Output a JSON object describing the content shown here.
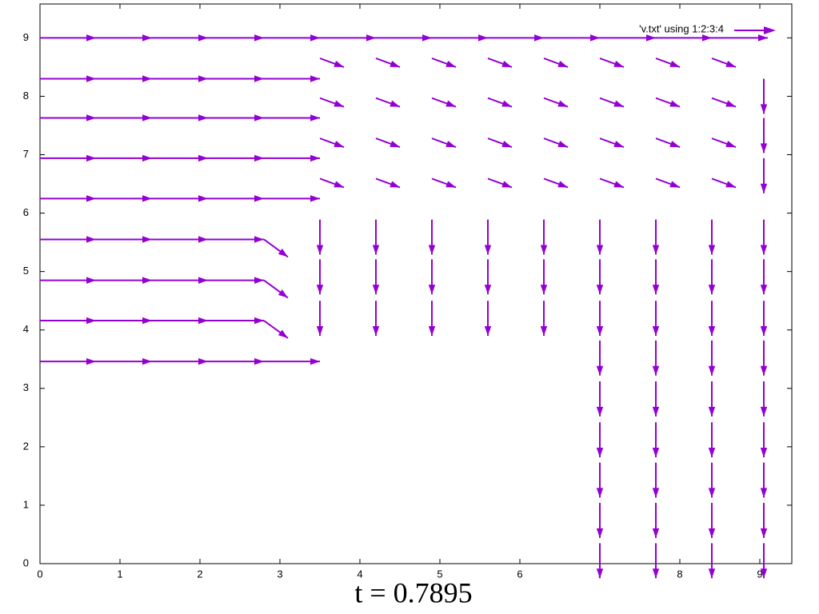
{
  "chart_data": {
    "type": "vector",
    "title": "t = 0.7895",
    "legend_label": "'v.txt' using 1:2:3:4",
    "color": "#9400d3",
    "xlim": [
      0,
      9.4
    ],
    "ylim": [
      0,
      9.58
    ],
    "xticks": [
      0,
      1,
      2,
      3,
      4,
      5,
      6,
      7,
      8,
      9
    ],
    "yticks": [
      0,
      1,
      2,
      3,
      4,
      5,
      6,
      7,
      8,
      9
    ],
    "x": [
      0,
      0.7,
      1.4,
      2.1,
      2.8,
      0,
      0.7,
      1.4,
      2.1,
      2.8,
      0,
      0.7,
      1.4,
      2.1,
      2.8,
      0,
      0.7,
      1.4,
      2.1,
      2.8,
      0,
      0.7,
      1.4,
      2.1,
      2.8,
      0,
      0.7,
      1.4,
      2.1,
      2.8,
      0,
      0.7,
      1.4,
      2.1,
      2.8,
      0,
      0.7,
      1.4,
      2.1,
      2.8,
      0,
      0.7,
      1.4,
      2.1,
      2.8,
      3.5,
      4.2,
      4.9,
      5.6,
      6.3,
      7.0,
      7.7,
      8.4,
      3.5,
      4.2,
      4.9,
      5.6,
      6.3,
      7.0,
      7.7,
      8.4,
      3.5,
      4.2,
      4.9,
      5.6,
      6.3,
      7.0,
      7.7,
      8.4,
      3.5,
      4.2,
      4.9,
      5.6,
      6.3,
      7.0,
      7.7,
      8.4,
      3.5,
      4.2,
      4.9,
      5.6,
      6.3,
      7.0,
      7.7,
      8.4,
      3.5,
      4.2,
      4.9,
      5.6,
      6.3,
      3.5,
      4.2,
      4.9,
      5.6,
      6.3,
      3.5,
      4.2,
      4.9,
      5.6,
      6.3,
      7.0,
      7.0,
      7.0,
      7.0,
      7.0,
      7.0,
      7.0,
      7.0,
      7.0,
      7.7,
      7.7,
      7.7,
      7.7,
      7.7,
      7.7,
      7.7,
      7.7,
      7.7,
      8.4,
      8.4,
      8.4,
      8.4,
      8.4,
      8.4,
      8.4,
      8.4,
      8.4,
      9.05,
      9.05,
      9.05,
      9.05,
      9.05,
      9.05,
      9.05,
      9.05,
      9.05,
      9.05,
      9.05,
      9.05
    ],
    "y": [
      9.0,
      9.0,
      9.0,
      9.0,
      9.0,
      8.3,
      8.3,
      8.3,
      8.3,
      8.3,
      7.63,
      7.63,
      7.63,
      7.63,
      7.63,
      6.94,
      6.94,
      6.94,
      6.94,
      6.94,
      6.25,
      6.25,
      6.25,
      6.25,
      6.25,
      5.55,
      5.55,
      5.55,
      5.55,
      5.55,
      4.85,
      4.85,
      4.85,
      4.85,
      4.85,
      4.16,
      4.16,
      4.16,
      4.16,
      4.16,
      3.46,
      3.46,
      3.46,
      3.46,
      3.46,
      9.0,
      9.0,
      9.0,
      9.0,
      9.0,
      9.0,
      9.0,
      9.0,
      8.65,
      8.65,
      8.65,
      8.65,
      8.65,
      8.65,
      8.65,
      8.65,
      7.97,
      7.97,
      7.97,
      7.97,
      7.97,
      7.97,
      7.97,
      7.97,
      7.28,
      7.28,
      7.28,
      7.28,
      7.28,
      7.28,
      7.28,
      7.28,
      6.59,
      6.59,
      6.59,
      6.59,
      6.59,
      6.59,
      6.59,
      6.59,
      5.89,
      5.89,
      5.89,
      5.89,
      5.89,
      5.21,
      5.21,
      5.21,
      5.21,
      5.21,
      4.5,
      4.5,
      4.5,
      4.5,
      4.5,
      5.89,
      5.21,
      4.5,
      3.82,
      3.12,
      2.42,
      1.73,
      1.04,
      0.35,
      5.89,
      5.21,
      4.5,
      3.82,
      3.12,
      2.42,
      1.73,
      1.04,
      0.35,
      5.89,
      5.21,
      4.5,
      3.82,
      3.12,
      2.42,
      1.73,
      1.04,
      0.35,
      5.89,
      5.21,
      4.5,
      3.82,
      3.12,
      2.42,
      1.73,
      1.04,
      0.35,
      8.3,
      7.63,
      6.94
    ],
    "u": [
      0.7,
      0.7,
      0.7,
      0.7,
      0.7,
      0.7,
      0.7,
      0.7,
      0.7,
      0.7,
      0.7,
      0.7,
      0.7,
      0.7,
      0.7,
      0.7,
      0.7,
      0.7,
      0.7,
      0.7,
      0.7,
      0.7,
      0.7,
      0.7,
      0.7,
      0.7,
      0.7,
      0.7,
      0.7,
      0.3,
      0.7,
      0.7,
      0.7,
      0.7,
      0.3,
      0.7,
      0.7,
      0.7,
      0.7,
      0.3,
      0.7,
      0.7,
      0.7,
      0.7,
      0.7,
      0.7,
      0.7,
      0.7,
      0.7,
      0.7,
      0.7,
      0.7,
      0.7,
      0.3,
      0.3,
      0.3,
      0.3,
      0.3,
      0.3,
      0.3,
      0.3,
      0.3,
      0.3,
      0.3,
      0.3,
      0.3,
      0.3,
      0.3,
      0.3,
      0.3,
      0.3,
      0.3,
      0.3,
      0.3,
      0.3,
      0.3,
      0.3,
      0.3,
      0.3,
      0.3,
      0.3,
      0.3,
      0.3,
      0.3,
      0.3,
      0,
      0,
      0,
      0,
      0,
      0,
      0,
      0,
      0,
      0,
      0,
      0,
      0,
      0,
      0,
      0,
      0,
      0,
      0,
      0,
      0,
      0,
      0,
      0,
      0,
      0,
      0,
      0,
      0,
      0,
      0,
      0,
      0,
      0,
      0,
      0,
      0,
      0,
      0,
      0,
      0,
      0,
      0,
      0,
      0,
      0,
      0,
      0,
      0,
      0,
      0,
      0,
      0,
      0
    ],
    "v": [
      0,
      0,
      0,
      0,
      0,
      0,
      0,
      0,
      0,
      0,
      0,
      0,
      0,
      0,
      0,
      0,
      0,
      0,
      0,
      0,
      0,
      0,
      0,
      0,
      0,
      0,
      0,
      0,
      0,
      -0.3,
      0,
      0,
      0,
      0,
      -0.3,
      0,
      0,
      0,
      0,
      -0.3,
      0,
      0,
      0,
      0,
      0,
      0,
      0,
      0,
      0,
      0,
      0,
      0,
      0,
      -0.15,
      -0.15,
      -0.15,
      -0.15,
      -0.15,
      -0.15,
      -0.15,
      -0.15,
      -0.15,
      -0.15,
      -0.15,
      -0.15,
      -0.15,
      -0.15,
      -0.15,
      -0.15,
      -0.15,
      -0.15,
      -0.15,
      -0.15,
      -0.15,
      -0.15,
      -0.15,
      -0.15,
      -0.15,
      -0.15,
      -0.15,
      -0.15,
      -0.15,
      -0.15,
      -0.15,
      -0.15,
      -0.6,
      -0.6,
      -0.6,
      -0.6,
      -0.6,
      -0.6,
      -0.6,
      -0.6,
      -0.6,
      -0.6,
      -0.6,
      -0.6,
      -0.6,
      -0.6,
      -0.6,
      -0.6,
      -0.6,
      -0.6,
      -0.6,
      -0.6,
      -0.6,
      -0.6,
      -0.6,
      -0.6,
      -0.6,
      -0.6,
      -0.6,
      -0.6,
      -0.6,
      -0.6,
      -0.6,
      -0.6,
      -0.6,
      -0.6,
      -0.6,
      -0.6,
      -0.6,
      -0.6,
      -0.6,
      -0.6,
      -0.6,
      -0.6,
      -0.6,
      -0.6,
      -0.6,
      -0.6,
      -0.6,
      -0.6,
      -0.6,
      -0.6,
      -0.6,
      -0.6,
      -0.6,
      -0.6
    ]
  }
}
